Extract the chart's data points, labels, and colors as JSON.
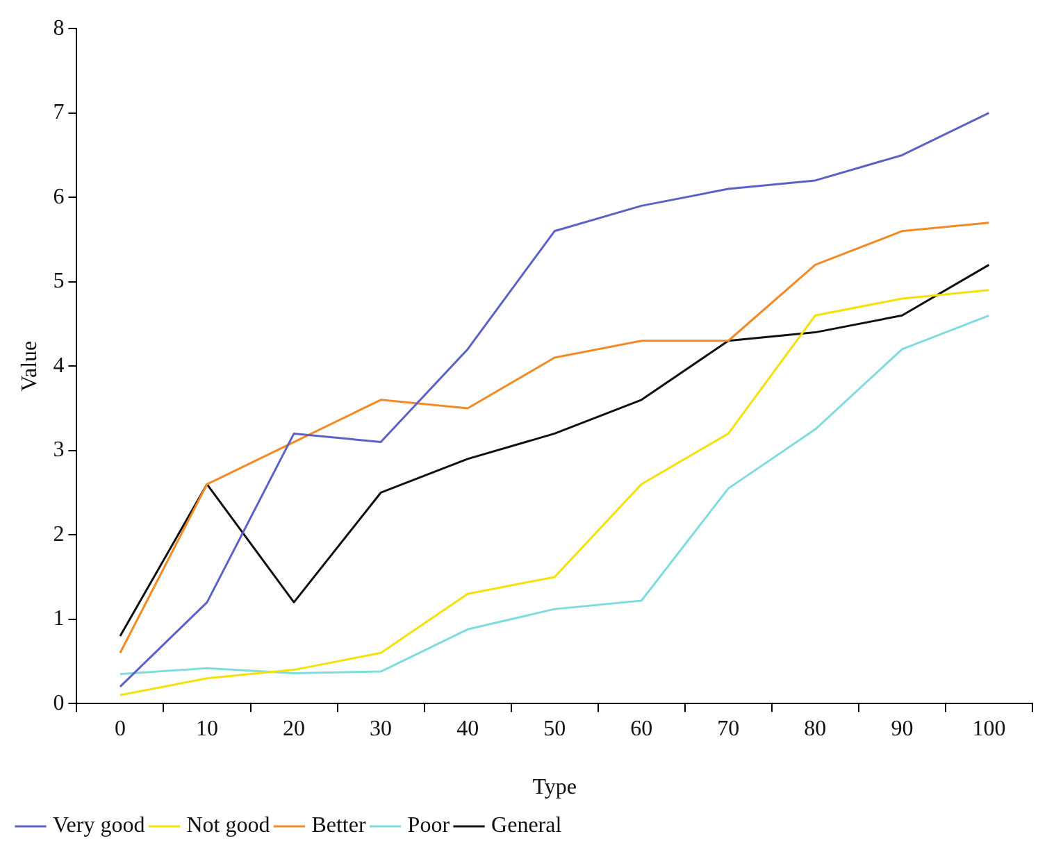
{
  "chart_data": {
    "type": "line",
    "xlabel": "Type",
    "ylabel": "Value",
    "categories": [
      "0",
      "10",
      "20",
      "30",
      "40",
      "50",
      "60",
      "70",
      "80",
      "90",
      "100"
    ],
    "ylim": [
      0,
      8
    ],
    "yticks": [
      0,
      1,
      2,
      3,
      4,
      5,
      6,
      7,
      8
    ],
    "grid": false,
    "legend": "bottom",
    "marker": "none",
    "line_style": "solid",
    "series": [
      {
        "name": "Very good",
        "color": "#5b62c4",
        "values": [
          0.2,
          1.2,
          3.2,
          3.1,
          4.2,
          5.6,
          5.9,
          6.1,
          6.2,
          6.5,
          7.0
        ]
      },
      {
        "name": "Not good",
        "color": "#f5e10a",
        "values": [
          0.1,
          0.3,
          0.4,
          0.6,
          1.3,
          1.5,
          2.6,
          3.2,
          4.6,
          4.8,
          4.9
        ]
      },
      {
        "name": "Better",
        "color": "#f28a26",
        "values": [
          0.6,
          2.6,
          3.1,
          3.6,
          3.5,
          4.1,
          4.3,
          4.3,
          5.2,
          5.6,
          5.7
        ]
      },
      {
        "name": "Poor",
        "color": "#80dcdc",
        "values": [
          0.35,
          0.42,
          0.36,
          0.38,
          0.88,
          1.12,
          1.22,
          2.55,
          3.25,
          4.2,
          4.6
        ]
      },
      {
        "name": "General",
        "color": "#111111",
        "values": [
          0.8,
          2.6,
          1.2,
          2.5,
          2.9,
          3.2,
          3.6,
          4.3,
          4.4,
          4.6,
          5.2
        ]
      }
    ]
  }
}
